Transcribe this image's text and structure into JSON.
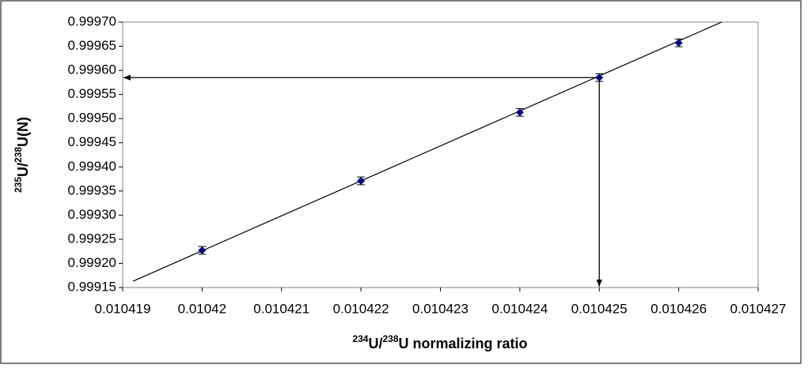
{
  "chart_data": {
    "type": "scatter",
    "x_label_parts": [
      "234",
      "U/",
      "238",
      "U normalizing ratio"
    ],
    "y_label_parts": [
      "235",
      "U/",
      "238",
      "U(N)"
    ],
    "x": [
      0.01042,
      0.010422,
      0.010424,
      0.010425,
      0.010426
    ],
    "series": [
      {
        "color": "#000080",
        "values": [
          0.999227,
          0.999371,
          0.999513,
          0.999585,
          0.999657
        ],
        "errors": [
          8e-06,
          8e-06,
          8e-06,
          8e-06,
          8e-06
        ]
      }
    ],
    "fit_line": {
      "x": [
        0.01041913,
        0.01042654
      ],
      "y": [
        0.999163,
        0.9997
      ],
      "color": "#000000"
    },
    "interpolation": {
      "x": 0.010425,
      "y": 0.999585
    },
    "xlim": [
      0.010419,
      0.010427
    ],
    "xticks": [
      0.010419,
      0.01042,
      0.010421,
      0.010422,
      0.010423,
      0.010424,
      0.010425,
      0.010426,
      0.010427
    ],
    "ylim": [
      0.99915,
      0.9997
    ],
    "yticks": [
      0.99915,
      {
        "value": 0.9992,
        "label": "0.99920"
      },
      0.99925,
      {
        "value": 0.9993,
        "label": "0.99930"
      },
      0.99935,
      {
        "value": 0.9994,
        "label": "0.99940"
      },
      0.99945,
      {
        "value": 0.9995,
        "label": "0.99950"
      },
      0.99955,
      {
        "value": 0.9996,
        "label": "0.99960"
      },
      0.99965,
      {
        "value": 0.9997,
        "label": "0.99970"
      }
    ],
    "grid": false
  }
}
